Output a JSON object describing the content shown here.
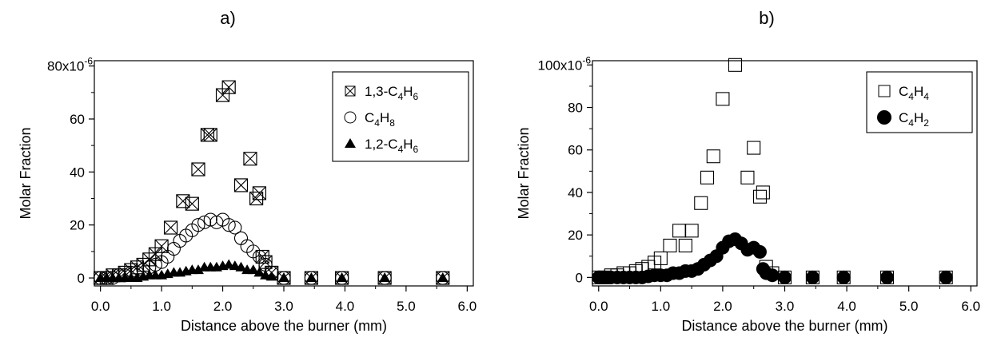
{
  "chart_data": [
    {
      "panel_label": "a)",
      "type": "scatter",
      "xlabel": "Distance above the burner (mm)",
      "ylabel": "Molar Fraction",
      "xlim": [
        -0.1,
        6.1
      ],
      "ylim": [
        -3,
        82
      ],
      "xticks": [
        0.0,
        1.0,
        2.0,
        3.0,
        4.0,
        5.0,
        6.0
      ],
      "xtick_labels": [
        "0.0",
        "1.0",
        "2.0",
        "3.0",
        "4.0",
        "5.0",
        "6.0"
      ],
      "yticks": [
        0,
        20,
        40,
        60,
        80
      ],
      "ytick_labels": [
        "0",
        "20",
        "40",
        "60",
        "80x10"
      ],
      "y_exponent": "-6",
      "grid": false,
      "legend_position": "top-right",
      "series": [
        {
          "name_main": "1,3-C",
          "sub1": "4",
          "name_mid": "H",
          "sub2": "6",
          "marker": "boxed-x",
          "x": [
            0.0,
            0.1,
            0.2,
            0.3,
            0.4,
            0.5,
            0.6,
            0.7,
            0.8,
            0.9,
            1.0,
            1.15,
            1.35,
            1.5,
            1.6,
            1.75,
            1.8,
            2.0,
            2.1,
            2.3,
            2.45,
            2.55,
            2.6,
            2.65,
            2.7,
            2.8,
            3.0,
            3.45,
            3.95,
            4.65,
            5.6
          ],
          "y": [
            0,
            0,
            1,
            1,
            2,
            3,
            4,
            5,
            7,
            9,
            12,
            19,
            29,
            28,
            41,
            54,
            54,
            69,
            72,
            35,
            45,
            30,
            32,
            8,
            6,
            2,
            0,
            0,
            0,
            0,
            0
          ]
        },
        {
          "name_main": "C",
          "sub1": "4",
          "name_mid": "H",
          "sub2": "8",
          "marker": "open-circle",
          "x": [
            0.0,
            0.1,
            0.2,
            0.3,
            0.4,
            0.5,
            0.6,
            0.7,
            0.8,
            0.9,
            1.0,
            1.1,
            1.2,
            1.3,
            1.4,
            1.5,
            1.6,
            1.7,
            1.8,
            1.9,
            2.0,
            2.1,
            2.2,
            2.3,
            2.4,
            2.5,
            2.6,
            2.7,
            2.8,
            3.0,
            3.45,
            3.95,
            4.65,
            5.6
          ],
          "y": [
            0,
            0,
            0,
            1,
            1,
            2,
            2,
            3,
            4,
            5,
            6,
            8,
            11,
            14,
            16,
            18,
            20,
            21,
            22,
            21,
            22,
            20,
            19,
            15,
            12,
            10,
            8,
            5,
            2,
            0,
            0,
            0,
            0,
            0
          ]
        },
        {
          "name_main": "1,2-C",
          "sub1": "4",
          "name_mid": "H",
          "sub2": "6",
          "marker": "filled-triangle",
          "x": [
            0.0,
            0.1,
            0.2,
            0.3,
            0.4,
            0.5,
            0.6,
            0.7,
            0.8,
            0.9,
            1.0,
            1.1,
            1.2,
            1.3,
            1.4,
            1.5,
            1.6,
            1.7,
            1.8,
            1.9,
            2.0,
            2.1,
            2.2,
            2.3,
            2.4,
            2.5,
            2.6,
            2.7,
            2.8,
            3.0,
            3.45,
            3.95,
            4.65,
            5.6
          ],
          "y": [
            0,
            0,
            0,
            0,
            0,
            0,
            0,
            0.5,
            1,
            1,
            1,
            1.5,
            2,
            2,
            2.5,
            3,
            3,
            4,
            4,
            4,
            4.5,
            5,
            4.5,
            4,
            3,
            3,
            2,
            1,
            0.5,
            0,
            0,
            0,
            0,
            0
          ]
        }
      ]
    },
    {
      "panel_label": "b)",
      "type": "scatter",
      "xlabel": "Distance above the burner (mm)",
      "ylabel": "Molar Fraction",
      "xlim": [
        -0.1,
        6.1
      ],
      "ylim": [
        -4,
        102
      ],
      "xticks": [
        0.0,
        1.0,
        2.0,
        3.0,
        4.0,
        5.0,
        6.0
      ],
      "xtick_labels": [
        "0.0",
        "1.0",
        "2.0",
        "3.0",
        "4.0",
        "5.0",
        "6.0"
      ],
      "yticks": [
        0,
        20,
        40,
        60,
        80,
        100
      ],
      "ytick_labels": [
        "0",
        "20",
        "40",
        "60",
        "80",
        "100x10"
      ],
      "y_exponent": "-6",
      "grid": false,
      "legend_position": "top-right",
      "series": [
        {
          "name_main": "C",
          "sub1": "4",
          "name_mid": "H",
          "sub2": "4",
          "marker": "open-square",
          "x": [
            0.0,
            0.1,
            0.2,
            0.3,
            0.4,
            0.5,
            0.6,
            0.7,
            0.8,
            0.9,
            1.0,
            1.15,
            1.3,
            1.4,
            1.5,
            1.65,
            1.75,
            1.85,
            2.0,
            2.2,
            2.4,
            2.5,
            2.6,
            2.65,
            2.7,
            2.8,
            3.0,
            3.45,
            3.95,
            4.65,
            5.6
          ],
          "y": [
            0,
            0,
            1,
            1,
            2,
            2,
            3,
            4,
            5,
            7,
            9,
            15,
            22,
            15,
            22,
            35,
            47,
            57,
            84,
            100,
            47,
            61,
            38,
            40,
            5,
            2,
            0,
            0,
            0,
            0,
            0
          ]
        },
        {
          "name_main": "C",
          "sub1": "4",
          "name_mid": "H",
          "sub2": "2",
          "marker": "filled-circle",
          "x": [
            0.0,
            0.1,
            0.2,
            0.3,
            0.4,
            0.5,
            0.6,
            0.7,
            0.8,
            0.9,
            1.0,
            1.1,
            1.2,
            1.3,
            1.4,
            1.5,
            1.6,
            1.7,
            1.8,
            1.9,
            2.0,
            2.1,
            2.2,
            2.3,
            2.4,
            2.5,
            2.6,
            2.65,
            2.7,
            2.8,
            3.0,
            3.45,
            3.95,
            4.65,
            5.6
          ],
          "y": [
            0,
            0,
            0,
            0,
            0,
            0,
            0,
            0,
            0.5,
            1,
            1,
            1,
            2,
            2,
            3,
            3,
            4,
            6,
            8,
            10,
            14,
            17,
            18,
            16,
            13,
            14,
            12,
            4,
            2,
            1,
            0,
            0,
            0,
            0,
            0
          ]
        }
      ]
    }
  ]
}
